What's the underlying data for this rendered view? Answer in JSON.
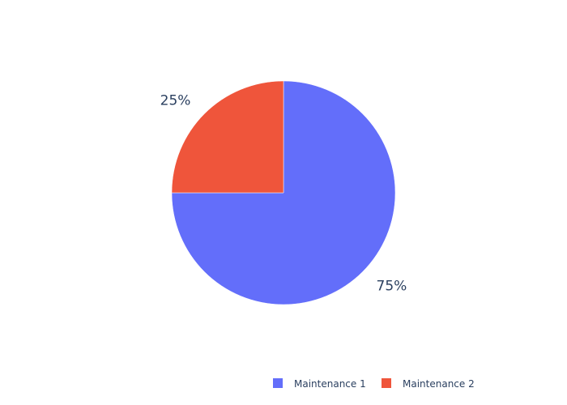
{
  "chart_data": {
    "type": "pie",
    "title": "",
    "slices": [
      {
        "label": "Maintenance 1",
        "value": 75,
        "percent_label": "75%",
        "color": "#636efa"
      },
      {
        "label": "Maintenance 2",
        "value": 25,
        "percent_label": "25%",
        "color": "#ef553b"
      }
    ],
    "start_angle_deg": 0,
    "direction": "clockwise",
    "legend_position": "bottom-right",
    "legend": {
      "item_1": "Maintenance 1",
      "item_2": "Maintenance 2"
    }
  }
}
